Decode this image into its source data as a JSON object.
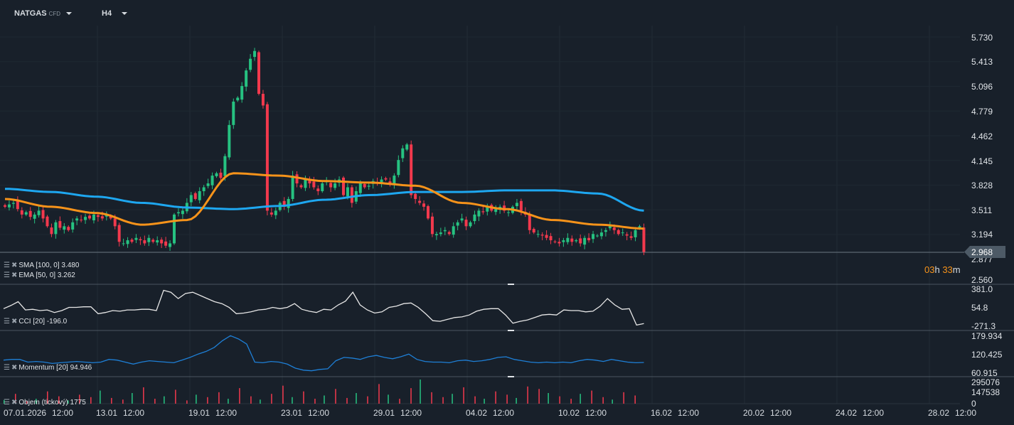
{
  "toolbar": {
    "symbol": "NATGAS",
    "symbol_type": "CFD",
    "timeframe": "H4"
  },
  "colors": {
    "up": "#26c281",
    "down": "#f2394d",
    "sma": "#1ea7f0",
    "ema": "#f7931a",
    "cci": "#e6e6e6",
    "momentum": "#1e7fd6",
    "bg": "#18202a"
  },
  "legends": {
    "sma": "SMA [100,  0] 3.480",
    "ema": "EMA [50, 0] 3.262",
    "cci": "CCI [20] -196.0",
    "momentum": "Momentum  [20] 94.946",
    "volume": "Objem  (tickový)  1775"
  },
  "current_price": "2.968",
  "countdown": {
    "h": "03",
    "h_unit": "h",
    "m": "33",
    "m_unit": "m"
  },
  "chart_data": {
    "type": "candlestick",
    "price_axis": [
      "5.730",
      "5.413",
      "5.096",
      "4.779",
      "4.462",
      "4.145",
      "3.828",
      "3.511",
      "3.194",
      "2.877",
      "2.560"
    ],
    "cci_axis": [
      "381.0",
      "54.8",
      "-271.3"
    ],
    "momentum_axis": [
      "179.934",
      "120.425",
      "60.915"
    ],
    "volume_axis": [
      "295076",
      "147538",
      "0"
    ],
    "x_labels": [
      [
        "07.01.2026",
        "12:00"
      ],
      [
        "13.01",
        "12:00"
      ],
      [
        "19.01",
        "12:00"
      ],
      [
        "23.01",
        "12:00"
      ],
      [
        "29.01",
        "12:00"
      ],
      [
        "04.02",
        "12:00"
      ],
      [
        "10.02",
        "12:00"
      ],
      [
        "16.02",
        "12:00"
      ],
      [
        "20.02",
        "12:00"
      ],
      [
        "24.02",
        "12:00"
      ],
      [
        "28.02",
        "12:00"
      ]
    ],
    "closes": [
      3.55,
      3.58,
      3.6,
      3.52,
      3.45,
      3.48,
      3.42,
      3.45,
      3.5,
      3.4,
      3.3,
      3.2,
      3.35,
      3.28,
      3.3,
      3.25,
      3.35,
      3.4,
      3.38,
      3.42,
      3.4,
      3.45,
      3.42,
      3.4,
      3.45,
      3.4,
      3.3,
      3.1,
      3.08,
      3.12,
      3.1,
      3.15,
      3.12,
      3.08,
      3.15,
      3.1,
      3.12,
      3.08,
      3.05,
      3.08,
      3.45,
      3.48,
      3.5,
      3.6,
      3.7,
      3.65,
      3.75,
      3.8,
      3.85,
      3.95,
      3.98,
      3.92,
      4.2,
      4.6,
      4.9,
      4.95,
      5.1,
      5.3,
      5.45,
      5.55,
      5.0,
      4.85,
      3.5,
      3.45,
      3.5,
      3.6,
      3.55,
      3.65,
      3.95,
      3.85,
      3.8,
      3.9,
      3.85,
      3.8,
      3.75,
      3.85,
      3.88,
      3.8,
      3.85,
      3.9,
      3.7,
      3.8,
      3.6,
      3.75,
      3.85,
      3.8,
      3.82,
      3.88,
      3.85,
      3.9,
      3.9,
      3.85,
      3.95,
      4.15,
      4.3,
      4.35,
      3.7,
      3.65,
      3.6,
      3.55,
      3.4,
      3.2,
      3.2,
      3.22,
      3.25,
      3.2,
      3.3,
      3.35,
      3.4,
      3.3,
      3.35,
      3.45,
      3.5,
      3.48,
      3.55,
      3.5,
      3.52,
      3.55,
      3.5,
      3.48,
      3.55,
      3.6,
      3.5,
      3.45,
      3.25,
      3.22,
      3.2,
      3.18,
      3.15,
      3.12,
      3.1,
      3.08,
      3.12,
      3.15,
      3.1,
      3.12,
      3.08,
      3.15,
      3.12,
      3.2,
      3.18,
      3.22,
      3.25,
      3.3,
      3.25,
      3.2,
      3.22,
      3.18,
      3.15,
      3.25,
      3.3,
      2.97
    ],
    "sma": [
      3.78,
      3.74,
      3.68,
      3.6,
      3.54,
      3.52,
      3.56,
      3.64,
      3.7,
      3.74,
      3.74,
      3.76,
      3.76,
      3.72,
      3.5
    ],
    "ema": [
      3.65,
      3.55,
      3.47,
      3.32,
      3.38,
      3.98,
      3.95,
      3.88,
      3.86,
      3.82,
      3.6,
      3.52,
      3.38,
      3.32,
      3.27
    ],
    "cci": [
      40,
      90,
      150,
      20,
      30,
      10,
      20,
      -20,
      10,
      60,
      60,
      70,
      70,
      -40,
      -20,
      10,
      0,
      20,
      20,
      30,
      30,
      10,
      330,
      300,
      200,
      280,
      300,
      250,
      200,
      150,
      120,
      60,
      -40,
      -30,
      -10,
      20,
      30,
      60,
      40,
      60,
      120,
      30,
      0,
      -20,
      30,
      20,
      100,
      160,
      300,
      100,
      20,
      -30,
      -10,
      60,
      80,
      120,
      130,
      60,
      -40,
      -150,
      -160,
      -130,
      -100,
      -90,
      -60,
      0,
      30,
      40,
      40,
      -60,
      -190,
      -160,
      -140,
      -100,
      -60,
      -50,
      -60,
      20,
      10,
      10,
      -10,
      0,
      80,
      200,
      100,
      30,
      40,
      -220,
      -196
    ],
    "momentum": [
      102,
      104,
      104,
      96,
      98,
      96,
      92,
      94,
      96,
      98,
      96,
      94,
      96,
      104,
      102,
      96,
      90,
      96,
      100,
      98,
      96,
      94,
      102,
      110,
      120,
      128,
      140,
      160,
      175,
      165,
      150,
      96,
      94,
      98,
      96,
      90,
      78,
      72,
      70,
      74,
      76,
      100,
      110,
      108,
      104,
      112,
      116,
      110,
      106,
      112,
      120,
      104,
      98,
      96,
      96,
      94,
      100,
      102,
      98,
      100,
      104,
      110,
      112,
      104,
      100,
      96,
      94,
      96,
      94,
      96,
      94,
      100,
      104,
      102,
      98,
      104,
      100,
      96,
      94,
      95
    ],
    "volume": [
      45000,
      120000,
      30000,
      60000,
      150000,
      90000,
      40000,
      110000,
      80000,
      160000,
      70000,
      50000,
      130000,
      200000,
      60000,
      90000,
      170000,
      40000,
      110000,
      80000,
      140000,
      60000,
      190000,
      90000,
      50000,
      120000,
      220000,
      80000,
      150000,
      60000,
      100000,
      180000,
      70000,
      130000,
      90000,
      240000,
      110000,
      60000,
      190000,
      295076,
      140000,
      80000,
      120000,
      200000,
      90000,
      60000,
      150000,
      110000,
      70000,
      210000,
      180000,
      130000,
      90000,
      60000,
      120000,
      160000,
      80000,
      50000,
      140000,
      100000
    ]
  }
}
